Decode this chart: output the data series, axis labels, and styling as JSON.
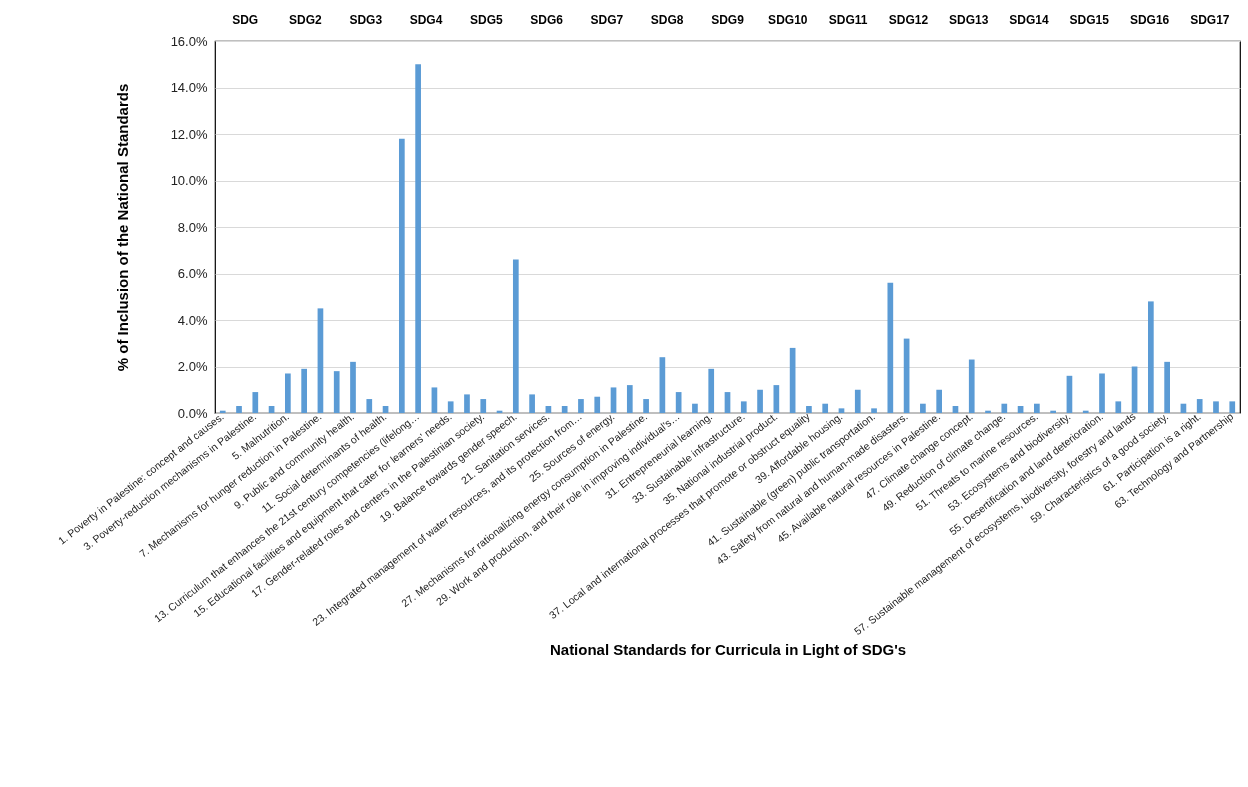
{
  "chart_data": {
    "type": "bar",
    "xlabel": "National Standards for Curricula in Light of SDG's",
    "ylabel": "% of Inclusion of the National Standards",
    "categories": [
      "1. Poverty in Palestine: concept and causes.",
      null,
      "3. Poverty-reduction mechanisms in Palestine.",
      null,
      "5. Malnutrition.",
      null,
      "7. Mechanisms for hunger reduction in Palestine.",
      null,
      "9. Public and community health.",
      null,
      "11. Social determinants of health.",
      null,
      "13. Curriculum that enhances the 21st century competencies (lifelong…",
      null,
      "15. Educational facilities and equipment that cater for learners’ needs.",
      null,
      "17. Gender-related roles and centers in the Palestinian society.",
      null,
      "19. Balance towards gender speech.",
      null,
      "21. Sanitation services.",
      null,
      "23. Integrated management of water resources, and its protection from…",
      null,
      "25. Sources of energy.",
      null,
      "27. Mechanisms for rationalizing energy consumption in Palestine.",
      null,
      "29. Work and production, and their role in improving individual’s…",
      null,
      "31. Entrepreneurial learning.",
      null,
      "33. Sustainable infrastructure.",
      null,
      "35. National industrial product.",
      null,
      "37. Local and international processes that promote or obstruct equality",
      null,
      "39. Affordable housing.",
      null,
      "41. Sustainable (green) public transportation.",
      null,
      "43. Safety from natural and human-made disasters.",
      null,
      "45. Available natural resources in Palestine.",
      null,
      "47. Climate change concept.",
      null,
      "49. Reduction of climate change.",
      null,
      "51. Threats to marine resources.",
      null,
      "53. Ecosystems and biodiversity.",
      null,
      "55. Desertification and land deterioration.",
      null,
      "57. Sustainable management of ecosystems, biodiversity, forestry and lands",
      null,
      "59. Characteristics of a good society.",
      null,
      "61. Participation is a right.",
      null,
      "63. Technology and Partnership"
    ],
    "values": [
      0.1,
      0.3,
      0.9,
      0.3,
      1.7,
      1.9,
      4.5,
      1.8,
      2.2,
      0.6,
      0.3,
      11.8,
      15.0,
      1.1,
      0.5,
      0.8,
      0.6,
      0.1,
      6.6,
      0.8,
      0.3,
      0.3,
      0.6,
      0.7,
      1.1,
      1.2,
      0.6,
      2.4,
      0.9,
      0.4,
      1.9,
      0.9,
      0.5,
      1.0,
      1.2,
      2.8,
      0.3,
      0.4,
      0.2,
      1.0,
      0.2,
      5.6,
      3.2,
      0.4,
      1.0,
      0.3,
      2.3,
      0.1,
      0.4,
      0.3,
      0.4,
      0.1,
      1.6,
      0.1,
      1.7,
      0.5,
      2.0,
      4.8,
      2.2,
      0.4,
      0.6,
      0.5,
      0.5
    ],
    "color": "#5b9bd5",
    "ylim": [
      0,
      16
    ],
    "yticks": [
      {
        "value": 0,
        "label": "0.0%"
      },
      {
        "value": 2,
        "label": "2.0%"
      },
      {
        "value": 4,
        "label": "4.0%"
      },
      {
        "value": 6,
        "label": "6.0%"
      },
      {
        "value": 8,
        "label": "8.0%"
      },
      {
        "value": 10,
        "label": "10.0%"
      },
      {
        "value": 12,
        "label": "12.0%"
      },
      {
        "value": 14,
        "label": "14.0%"
      },
      {
        "value": 16,
        "label": "16.0%"
      }
    ],
    "grid": "y",
    "annotations": [
      "SDG",
      "SDG2",
      "SDG3",
      "SDG4",
      "SDG5",
      "SDG6",
      "SDG7",
      "SDG8",
      "SDG9",
      "SDG10",
      "SDG11",
      "SDG12",
      "SDG13",
      "SDG14",
      "SDG15",
      "SDG16",
      "SDG17"
    ]
  }
}
